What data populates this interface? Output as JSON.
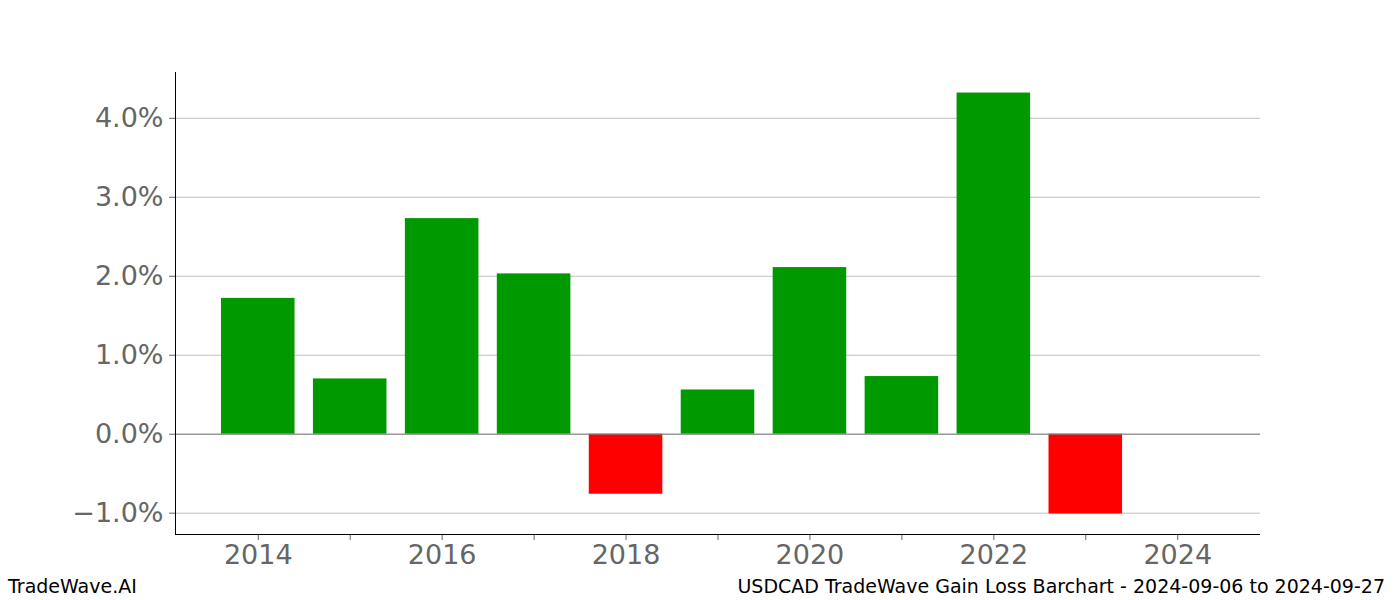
{
  "chart_data": {
    "type": "bar",
    "title": "USDCAD TradeWave Gain Loss Barchart - 2024-09-06 to 2024-09-27",
    "source": "TradeWave.AI",
    "x": [
      2014,
      2015,
      2016,
      2017,
      2018,
      2019,
      2020,
      2021,
      2022,
      2023
    ],
    "values": [
      1.72,
      0.7,
      2.73,
      2.03,
      -0.76,
      0.56,
      2.11,
      0.73,
      4.32,
      -1.01
    ],
    "colors": [
      "#009900",
      "#009900",
      "#009900",
      "#009900",
      "#ff0000",
      "#009900",
      "#009900",
      "#009900",
      "#009900",
      "#ff0000"
    ],
    "xlim": [
      2013.1,
      2024.9
    ],
    "xticks": [
      2014,
      2016,
      2018,
      2020,
      2022,
      2024
    ],
    "ylim": [
      -1.27,
      4.58
    ],
    "yticks": [
      {
        "value": -1,
        "label": "−1.0%"
      },
      {
        "value": 0,
        "label": "0.0%"
      },
      {
        "value": 1,
        "label": "1.0%"
      },
      {
        "value": 2,
        "label": "2.0%"
      },
      {
        "value": 3,
        "label": "3.0%"
      },
      {
        "value": 4,
        "label": "4.0%"
      }
    ],
    "grid": true
  }
}
